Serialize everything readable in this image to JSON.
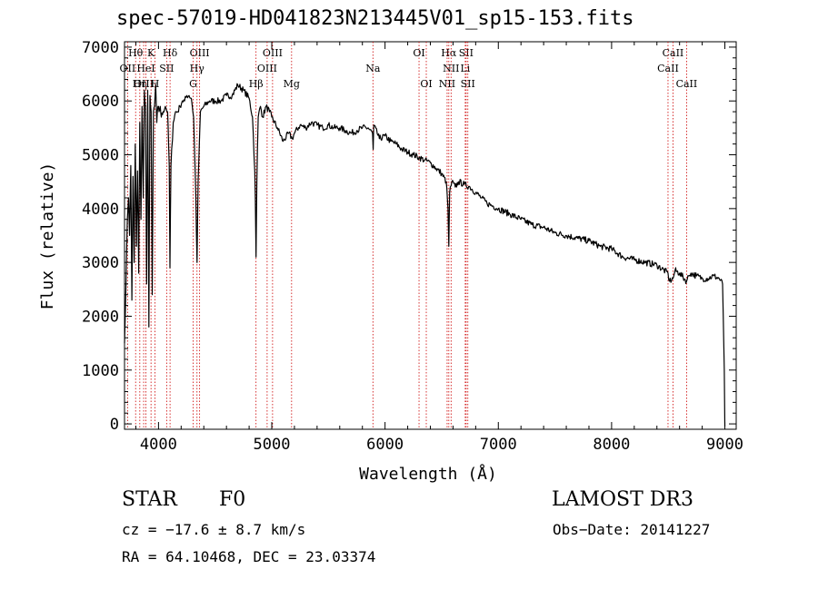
{
  "chart_data": {
    "type": "line",
    "title": "spec-57019-HD041823N213445V01_sp15-153.fits",
    "xlabel": "Wavelength (Å)",
    "ylabel": "Flux (relative)",
    "xlim": [
      3700,
      9100
    ],
    "ylim": [
      -100,
      7100
    ],
    "xticks": [
      4000,
      5000,
      6000,
      7000,
      8000,
      9000
    ],
    "yticks": [
      0,
      1000,
      2000,
      3000,
      4000,
      5000,
      6000,
      7000
    ],
    "series": [
      {
        "name": "flux",
        "x": [
          3700,
          3712,
          3725,
          3735,
          3745,
          3755,
          3765,
          3775,
          3785,
          3795,
          3805,
          3815,
          3825,
          3835,
          3845,
          3855,
          3865,
          3875,
          3885,
          3895,
          3905,
          3915,
          3925,
          3935,
          3945,
          3955,
          3965,
          3975,
          3985,
          3995,
          4005,
          4015,
          4025,
          4040,
          4060,
          4080,
          4095,
          4101,
          4110,
          4130,
          4150,
          4170,
          4190,
          4210,
          4230,
          4250,
          4270,
          4290,
          4310,
          4330,
          4340,
          4350,
          4370,
          4400,
          4450,
          4500,
          4550,
          4600,
          4650,
          4700,
          4750,
          4800,
          4830,
          4850,
          4855,
          4861,
          4868,
          4880,
          4900,
          4920,
          4950,
          4980,
          5000,
          5050,
          5100,
          5150,
          5180,
          5200,
          5250,
          5300,
          5350,
          5400,
          5450,
          5500,
          5550,
          5600,
          5650,
          5700,
          5750,
          5800,
          5850,
          5890,
          5895,
          5900,
          5950,
          6000,
          6050,
          6100,
          6150,
          6200,
          6250,
          6300,
          6350,
          6400,
          6450,
          6500,
          6540,
          6556,
          6563,
          6570,
          6590,
          6620,
          6650,
          6700,
          6750,
          6800,
          6850,
          6900,
          6950,
          7000,
          7100,
          7200,
          7300,
          7400,
          7500,
          7600,
          7700,
          7800,
          7900,
          8000,
          8100,
          8200,
          8300,
          8400,
          8498,
          8510,
          8542,
          8560,
          8600,
          8662,
          8680,
          8700,
          8750,
          8800,
          8850,
          8900,
          8950,
          8980,
          8995,
          9000
        ],
        "y": [
          1500,
          2500,
          3800,
          4200,
          3500,
          4800,
          2300,
          4600,
          3000,
          5200,
          3300,
          4700,
          2800,
          5600,
          3800,
          5900,
          4200,
          6200,
          5900,
          2600,
          6200,
          1800,
          6100,
          5800,
          2400,
          5800,
          5900,
          6300,
          5600,
          5900,
          5800,
          5900,
          5700,
          5800,
          5900,
          5800,
          4800,
          2900,
          4800,
          5600,
          5800,
          5800,
          5900,
          6000,
          6000,
          6100,
          6100,
          6050,
          5700,
          4200,
          3000,
          4500,
          5800,
          5900,
          6000,
          6000,
          6000,
          6100,
          6100,
          6300,
          6200,
          6050,
          5700,
          4700,
          4200,
          3100,
          4500,
          5700,
          5900,
          5700,
          5900,
          5800,
          5700,
          5500,
          5250,
          5400,
          5300,
          5400,
          5550,
          5500,
          5600,
          5550,
          5500,
          5550,
          5500,
          5500,
          5450,
          5400,
          5450,
          5500,
          5500,
          5400,
          5100,
          5550,
          5300,
          5350,
          5250,
          5200,
          5100,
          5050,
          5000,
          4950,
          4900,
          4850,
          4750,
          4650,
          4500,
          4000,
          3300,
          4300,
          4500,
          4400,
          4500,
          4450,
          4400,
          4300,
          4200,
          4100,
          4050,
          4000,
          3900,
          3800,
          3700,
          3650,
          3550,
          3500,
          3450,
          3400,
          3300,
          3250,
          3100,
          3050,
          3000,
          2950,
          2800,
          2650,
          2700,
          2850,
          2800,
          2650,
          2750,
          2800,
          2750,
          2700,
          2700,
          2750,
          2700,
          2600,
          1000,
          -50
        ]
      }
    ],
    "line_markers": [
      {
        "label": "Hθ",
        "wavelength": 3798,
        "row": 1
      },
      {
        "label": "OII",
        "wavelength": 3727,
        "row": 2
      },
      {
        "label": "Hη",
        "wavelength": 3835,
        "row": 3
      },
      {
        "label": "OIII",
        "wavelength": 3869,
        "row": 3
      },
      {
        "label": "HeI",
        "wavelength": 3889,
        "row": 2
      },
      {
        "label": "K",
        "wavelength": 3934,
        "row": 1
      },
      {
        "label": "SII",
        "wavelength": 4072,
        "row": 2
      },
      {
        "label": "H",
        "wavelength": 3969,
        "row": 3
      },
      {
        "label": "Hδ",
        "wavelength": 4102,
        "row": 1
      },
      {
        "label": "OIII",
        "wavelength": 4363,
        "row": 1
      },
      {
        "label": "Hγ",
        "wavelength": 4340,
        "row": 2
      },
      {
        "label": "G",
        "wavelength": 4306,
        "row": 3
      },
      {
        "label": "OIII",
        "wavelength": 5007,
        "row": 1
      },
      {
        "label": "OIII",
        "wavelength": 4959,
        "row": 2
      },
      {
        "label": "Hβ",
        "wavelength": 4861,
        "row": 3
      },
      {
        "label": "Mg",
        "wavelength": 5175,
        "row": 3
      },
      {
        "label": "Na",
        "wavelength": 5893,
        "row": 2
      },
      {
        "label": "OI",
        "wavelength": 6300,
        "row": 1
      },
      {
        "label": "OI",
        "wavelength": 6364,
        "row": 3
      },
      {
        "label": "Hα",
        "wavelength": 6563,
        "row": 1
      },
      {
        "label": "SII",
        "wavelength": 6716,
        "row": 1
      },
      {
        "label": "NII",
        "wavelength": 6583,
        "row": 2
      },
      {
        "label": "Li",
        "wavelength": 6708,
        "row": 2
      },
      {
        "label": "NII",
        "wavelength": 6548,
        "row": 3
      },
      {
        "label": "SII",
        "wavelength": 6731,
        "row": 3
      },
      {
        "label": "CaII",
        "wavelength": 8542,
        "row": 1
      },
      {
        "label": "CaII",
        "wavelength": 8498,
        "row": 2
      },
      {
        "label": "CaII",
        "wavelength": 8662,
        "row": 3
      }
    ]
  },
  "info": {
    "object_type": "STAR",
    "object_class": "F0",
    "survey": "LAMOST DR3",
    "cz": "cz = −17.6 ± 8.7 km/s",
    "obs_date": "Obs−Date: 20141227",
    "radec": "RA =  64.10468, DEC =  23.03374"
  },
  "colors": {
    "spectrum": "#000000",
    "marker_lines": "#cc0000",
    "background": "#ffffff"
  }
}
